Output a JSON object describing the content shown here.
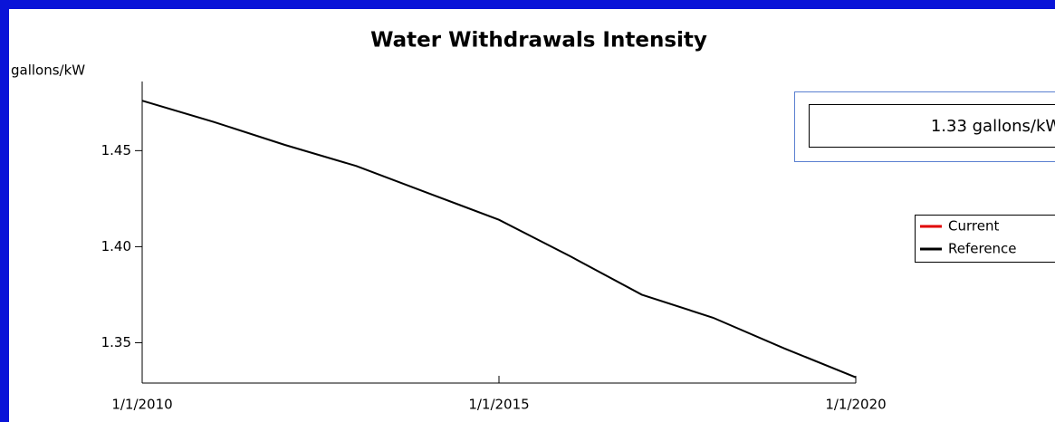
{
  "chart_data": {
    "type": "line",
    "title": "Water Withdrawals Intensity",
    "y_label": "gallons/kW",
    "x": [
      "2010-01-01",
      "2011-01-01",
      "2012-01-01",
      "2013-01-01",
      "2014-01-01",
      "2015-01-01",
      "2016-01-01",
      "2017-01-01",
      "2018-01-01",
      "2019-01-01",
      "2020-01-01"
    ],
    "xlim": [
      "2010-01-01",
      "2020-01-01"
    ],
    "xticks": [
      {
        "value": "2010-01-01",
        "label": "1/1/2010"
      },
      {
        "value": "2015-01-01",
        "label": "1/1/2015"
      },
      {
        "value": "2020-01-01",
        "label": "1/1/2020"
      }
    ],
    "ylim": [
      1.329,
      1.486
    ],
    "yticks": [
      {
        "value": 1.35,
        "label": "1.35"
      },
      {
        "value": 1.4,
        "label": "1.40"
      },
      {
        "value": 1.45,
        "label": "1.45"
      }
    ],
    "series": [
      {
        "name": "Current",
        "color": "#e00000",
        "values": [
          null,
          null,
          null,
          null,
          null,
          null,
          null,
          null,
          null,
          null,
          null
        ]
      },
      {
        "name": "Reference",
        "color": "#000000",
        "values": [
          1.476,
          1.465,
          1.453,
          1.442,
          1.428,
          1.414,
          1.395,
          1.375,
          1.363,
          1.347,
          1.332
        ]
      }
    ],
    "annotation": "1.33 gallons/kW",
    "legend": "right"
  }
}
